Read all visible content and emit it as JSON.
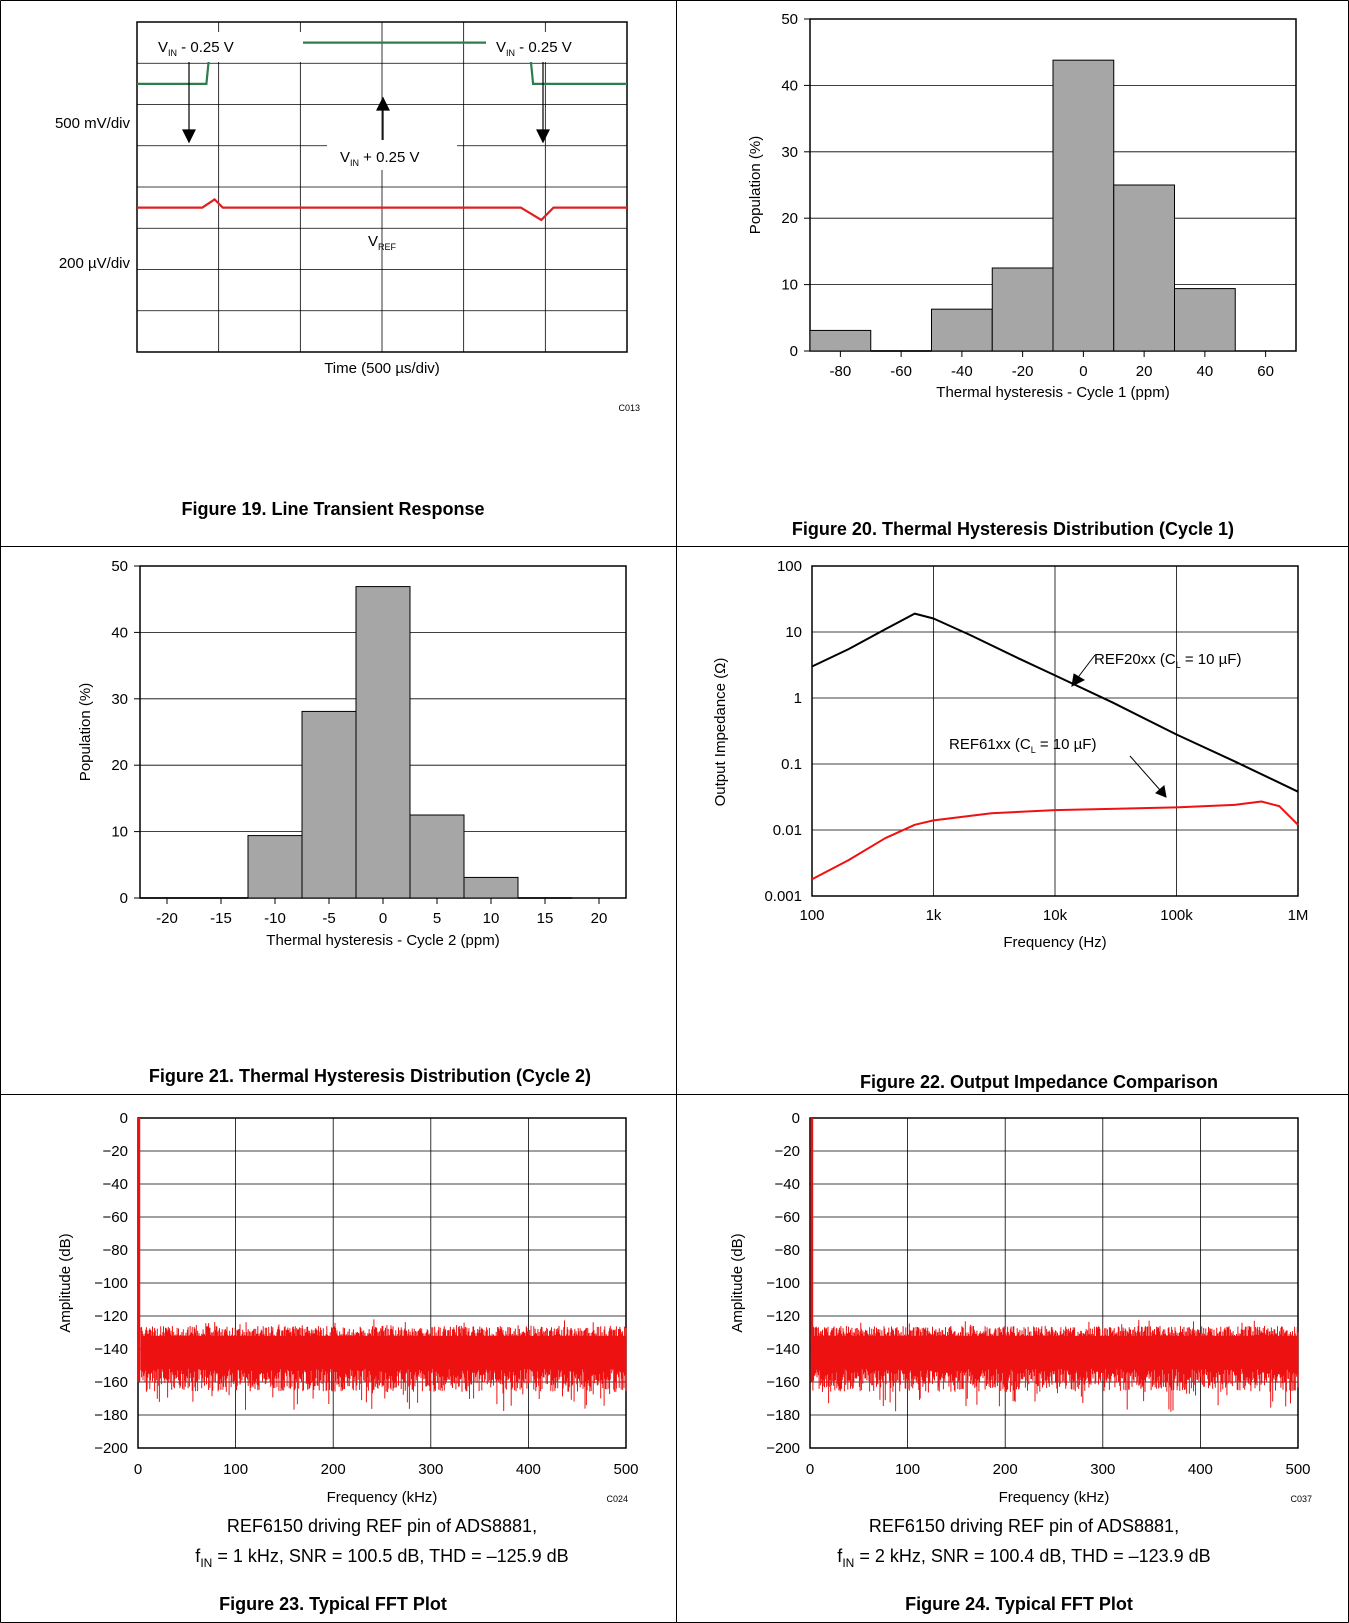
{
  "chart_data": [
    {
      "type": "line",
      "caption": "Figure 19. Line Transient Response",
      "xlabel": "Time (500 µs/div)",
      "code": "C013",
      "scale_labels": [
        "500 mV/div",
        "200 µV/div"
      ],
      "annotations": {
        "vin_minus_left": {
          "main": "V",
          "sub": "IN",
          "rest": " - 0.25 V"
        },
        "vin_minus_right": {
          "main": "V",
          "sub": "IN",
          "rest": " - 0.25 V"
        },
        "vin_plus": {
          "main": "V",
          "sub": "IN",
          "rest": " + 0.25 V"
        },
        "vref": {
          "main": "V",
          "sub": "REF",
          "rest": ""
        }
      },
      "grid": true,
      "x_divisions": 6,
      "y_divisions": 8,
      "series": [
        {
          "color": "#2e7d4f",
          "x_div": [
            0,
            0.85,
            0.9,
            4.8,
            4.85,
            6
          ],
          "y_div": [
            6.5,
            6.5,
            7.5,
            7.5,
            6.5,
            6.5
          ]
        },
        {
          "color": "#e02020",
          "x_div": [
            0,
            0.8,
            0.95,
            1.05,
            4.7,
            4.95,
            5.1,
            6
          ],
          "y_div": [
            3.5,
            3.5,
            3.7,
            3.5,
            3.5,
            3.2,
            3.5,
            3.5
          ]
        }
      ]
    },
    {
      "type": "bar",
      "caption": "Figure 20. Thermal Hysteresis Distribution (Cycle 1)",
      "xlabel": "Thermal hysteresis - Cycle 1 (ppm)",
      "ylabel": "Population (%)",
      "xlim": [
        -90,
        70
      ],
      "ylim": [
        0,
        50
      ],
      "xticks": [
        -80,
        -60,
        -40,
        -20,
        0,
        20,
        40,
        60
      ],
      "yticks": [
        0,
        10,
        20,
        30,
        40,
        50
      ],
      "bin_edges": [
        -90,
        -70,
        -50,
        -30,
        -10,
        10,
        30,
        50
      ],
      "values": [
        3.1,
        0,
        6.3,
        12.5,
        43.8,
        25.0,
        9.4
      ],
      "bar_color": "#a6a6a6"
    },
    {
      "type": "bar",
      "caption": "Figure 21. Thermal Hysteresis Distribution (Cycle 2)",
      "xlabel": "Thermal hysteresis - Cycle 2 (ppm)",
      "ylabel": "Population (%)",
      "xlim": [
        -22.5,
        22.5
      ],
      "ylim": [
        0,
        50
      ],
      "xticks": [
        -20,
        -15,
        -10,
        -5,
        0,
        5,
        10,
        15,
        20
      ],
      "yticks": [
        0,
        10,
        20,
        30,
        40,
        50
      ],
      "bin_edges": [
        -22.5,
        -17.5,
        -12.5,
        -7.5,
        -2.5,
        2.5,
        7.5,
        12.5,
        17.5
      ],
      "values": [
        0,
        0,
        9.4,
        28.1,
        46.9,
        12.5,
        3.1,
        0
      ],
      "bar_color": "#a6a6a6"
    },
    {
      "type": "line",
      "caption": "Figure 22. Output Impedance Comparison",
      "xlabel": "Frequency (Hz)",
      "ylabel": "Output Impedance (Ω)",
      "xscale": "log",
      "yscale": "log",
      "xlim": [
        100,
        1000000
      ],
      "ylim": [
        0.001,
        100
      ],
      "xticks": [
        100,
        1000,
        10000,
        100000,
        1000000
      ],
      "xtick_labels": [
        "100",
        "1k",
        "10k",
        "100k",
        "1M"
      ],
      "yticks": [
        0.001,
        0.01,
        0.1,
        1,
        10,
        100
      ],
      "ytick_labels": [
        "0.001",
        "0.01",
        "0.1",
        "1",
        "10",
        "100"
      ],
      "series": [
        {
          "label_main": "REF20xx (C",
          "label_sub": "L",
          "label_rest": " = 10 µF)",
          "color": "#000000",
          "x": [
            100,
            200,
            400,
            700,
            1000,
            2000,
            5000,
            10000,
            30000,
            100000,
            300000,
            1000000
          ],
          "y": [
            3,
            5.5,
            11,
            19,
            16,
            9,
            4,
            2.2,
            0.85,
            0.28,
            0.11,
            0.038
          ]
        },
        {
          "label_main": "REF61xx (C",
          "label_sub": "L",
          "label_rest": " = 10 µF)",
          "color": "#ee1111",
          "x": [
            100,
            200,
            400,
            700,
            1000,
            3000,
            10000,
            100000,
            300000,
            500000,
            700000,
            1000000
          ],
          "y": [
            0.0018,
            0.0035,
            0.0075,
            0.012,
            0.014,
            0.018,
            0.02,
            0.022,
            0.024,
            0.027,
            0.023,
            0.012
          ]
        }
      ]
    },
    {
      "type": "line",
      "caption": "Figure 23. Typical FFT Plot",
      "xlabel": "Frequency (kHz)",
      "ylabel": "Amplitude (dB)",
      "code": "C024",
      "xlim": [
        0,
        500
      ],
      "ylim": [
        -200,
        0
      ],
      "xticks": [
        0,
        100,
        200,
        300,
        400,
        500
      ],
      "yticks": [
        0,
        -20,
        -40,
        -60,
        -80,
        -100,
        -120,
        -140,
        -160,
        -180,
        -200
      ],
      "ytick_labels": [
        "0",
        "−20",
        "−40",
        "−60",
        "−80",
        "−100",
        "−120",
        "−140",
        "−160",
        "−180",
        "−200"
      ],
      "noise_floor_db": -140,
      "peak": {
        "x": 1,
        "y": 0
      },
      "conditions_line1": "REF6150 driving REF pin of ADS8881,",
      "conditions_line2_main": "f",
      "conditions_line2_sub": "IN",
      "conditions_line2_rest": " = 1 kHz, SNR = 100.5 dB, THD = –125.9 dB",
      "color": "#ee1111"
    },
    {
      "type": "line",
      "caption": "Figure 24. Typical FFT Plot",
      "xlabel": "Frequency (kHz)",
      "ylabel": "Amplitude (dB)",
      "code": "C037",
      "xlim": [
        0,
        500
      ],
      "ylim": [
        -200,
        0
      ],
      "xticks": [
        0,
        100,
        200,
        300,
        400,
        500
      ],
      "yticks": [
        0,
        -20,
        -40,
        -60,
        -80,
        -100,
        -120,
        -140,
        -160,
        -180,
        -200
      ],
      "ytick_labels": [
        "0",
        "−20",
        "−40",
        "−60",
        "−80",
        "−100",
        "−120",
        "−140",
        "−160",
        "−180",
        "−200"
      ],
      "noise_floor_db": -140,
      "peak": {
        "x": 2,
        "y": 0
      },
      "conditions_line1": "REF6150 driving REF pin of ADS8881,",
      "conditions_line2_main": "f",
      "conditions_line2_sub": "IN",
      "conditions_line2_rest": " = 2 kHz, SNR = 100.4 dB, THD = –123.9 dB",
      "color": "#ee1111"
    }
  ]
}
